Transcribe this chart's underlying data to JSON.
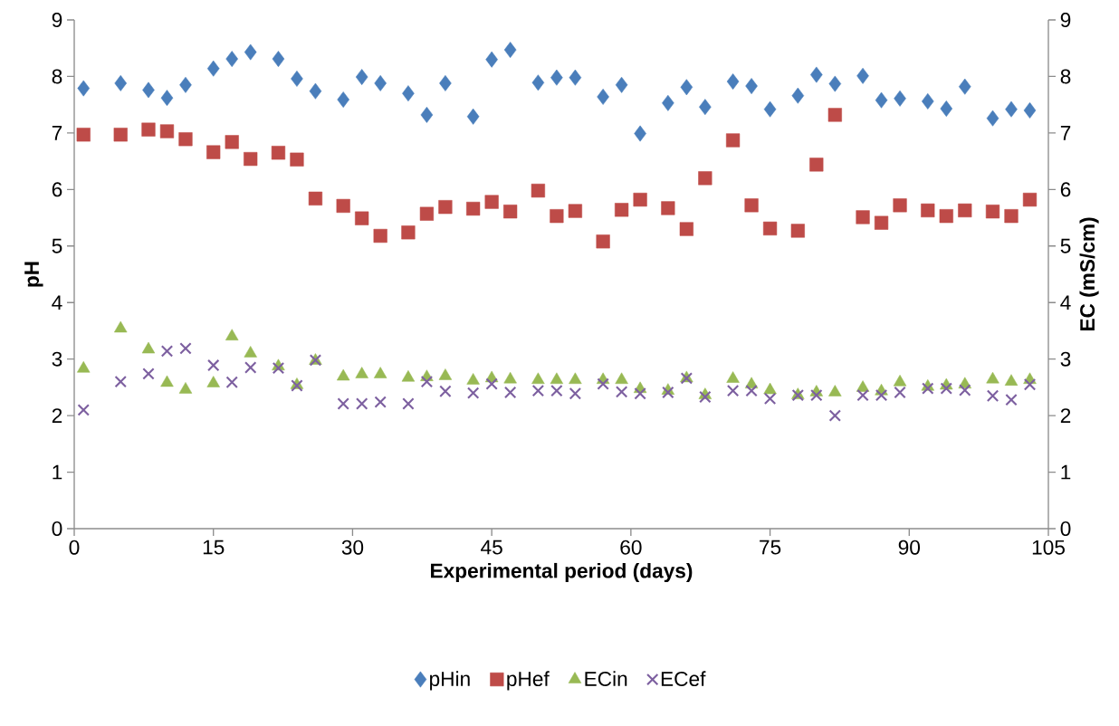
{
  "chart_data": {
    "type": "scatter",
    "xlabel": "Experimental period (days)",
    "ylabel": "pH",
    "y2label": "EC (mS/cm)",
    "x": [
      1,
      5,
      8,
      10,
      12,
      15,
      17,
      19,
      22,
      24,
      26,
      29,
      31,
      33,
      36,
      38,
      40,
      43,
      45,
      47,
      50,
      52,
      54,
      57,
      59,
      61,
      64,
      66,
      68,
      71,
      73,
      75,
      78,
      80,
      82,
      85,
      87,
      89,
      92,
      94,
      96,
      99,
      101,
      103
    ],
    "series": [
      {
        "name": "pHin",
        "color": "#4a7ebb",
        "marker": "diamond",
        "axis": "y",
        "values": [
          7.79,
          7.88,
          7.76,
          7.62,
          7.85,
          8.14,
          8.31,
          8.43,
          8.31,
          7.96,
          7.74,
          7.59,
          7.99,
          7.88,
          7.7,
          7.32,
          7.88,
          7.29,
          8.3,
          8.47,
          7.89,
          7.98,
          7.98,
          7.64,
          7.85,
          6.99,
          7.53,
          7.81,
          7.46,
          7.91,
          7.83,
          7.42,
          7.66,
          8.03,
          7.87,
          8.01,
          7.58,
          7.61,
          7.56,
          7.43,
          7.82,
          7.26,
          7.42,
          7.4
        ]
      },
      {
        "name": "pHef",
        "color": "#be4b48",
        "marker": "square",
        "axis": "y",
        "values": [
          6.97,
          6.97,
          7.06,
          7.03,
          6.89,
          6.66,
          6.84,
          6.54,
          6.65,
          6.53,
          5.84,
          5.71,
          5.49,
          5.18,
          5.24,
          5.57,
          5.69,
          5.66,
          5.78,
          5.61,
          5.98,
          5.53,
          5.62,
          5.08,
          5.64,
          5.82,
          5.67,
          5.3,
          6.2,
          6.87,
          5.72,
          5.31,
          5.27,
          6.44,
          7.32,
          5.51,
          5.41,
          5.72,
          5.63,
          5.53,
          5.63,
          5.61,
          5.53,
          5.82
        ]
      },
      {
        "name": "ECin",
        "color": "#98b954",
        "marker": "triangle",
        "axis": "y2",
        "values": [
          2.83,
          3.54,
          3.17,
          2.58,
          2.46,
          2.57,
          3.4,
          3.1,
          2.87,
          2.54,
          2.97,
          2.69,
          2.73,
          2.73,
          2.67,
          2.68,
          2.7,
          2.62,
          2.66,
          2.64,
          2.63,
          2.63,
          2.63,
          2.63,
          2.63,
          2.47,
          2.44,
          2.66,
          2.36,
          2.65,
          2.55,
          2.45,
          2.36,
          2.41,
          2.41,
          2.49,
          2.43,
          2.59,
          2.51,
          2.53,
          2.55,
          2.64,
          2.6,
          2.63
        ]
      },
      {
        "name": "ECef",
        "color": "#7d60a0",
        "marker": "cross",
        "axis": "y2",
        "values": [
          2.1,
          2.6,
          2.74,
          3.14,
          3.19,
          2.89,
          2.59,
          2.85,
          2.84,
          2.53,
          2.98,
          2.21,
          2.21,
          2.24,
          2.21,
          2.6,
          2.43,
          2.4,
          2.56,
          2.41,
          2.44,
          2.44,
          2.39,
          2.56,
          2.42,
          2.39,
          2.41,
          2.66,
          2.33,
          2.44,
          2.44,
          2.3,
          2.36,
          2.36,
          2.0,
          2.36,
          2.36,
          2.41,
          2.48,
          2.48,
          2.45,
          2.35,
          2.28,
          2.55
        ]
      }
    ],
    "xlim": [
      0,
      105
    ],
    "xticks": [
      0,
      15,
      30,
      45,
      60,
      75,
      90,
      105
    ],
    "ylim": [
      0,
      9
    ],
    "yticks": [
      0,
      1,
      2,
      3,
      4,
      5,
      6,
      7,
      8,
      9
    ],
    "y2lim": [
      0,
      9
    ],
    "y2ticks": [
      0,
      1,
      2,
      3,
      4,
      5,
      6,
      7,
      8,
      9
    ],
    "grid": false,
    "legend": "bottom"
  }
}
